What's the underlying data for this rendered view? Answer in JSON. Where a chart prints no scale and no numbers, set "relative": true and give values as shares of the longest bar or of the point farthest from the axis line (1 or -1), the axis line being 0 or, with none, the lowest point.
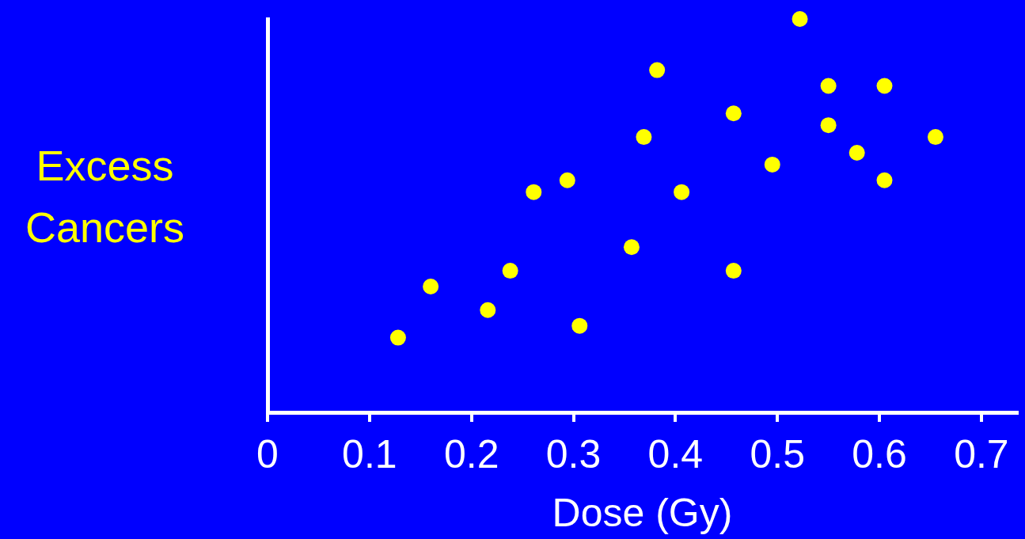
{
  "chart_data": {
    "type": "scatter",
    "xlabel": "Dose (Gy)",
    "ylabel": "Excess Cancers",
    "relative": true,
    "color": "#ffff00",
    "marker": "circle",
    "grid": false,
    "legend": false,
    "xlim": [
      0,
      0.735
    ],
    "xticks": [
      0,
      0.1,
      0.2,
      0.3,
      0.4,
      0.5,
      0.6,
      0.7
    ],
    "x": [
      0.128,
      0.16,
      0.216,
      0.238,
      0.261,
      0.294,
      0.306,
      0.357,
      0.369,
      0.382,
      0.406,
      0.457,
      0.457,
      0.495,
      0.522,
      0.55,
      0.55,
      0.578,
      0.605,
      0.605,
      0.655
    ],
    "values": [
      0.19,
      0.32,
      0.26,
      0.36,
      0.56,
      0.59,
      0.22,
      0.42,
      0.7,
      0.87,
      0.56,
      0.76,
      0.36,
      0.63,
      1,
      0.83,
      0.73,
      0.66,
      0.83,
      0.59,
      0.7
    ]
  }
}
